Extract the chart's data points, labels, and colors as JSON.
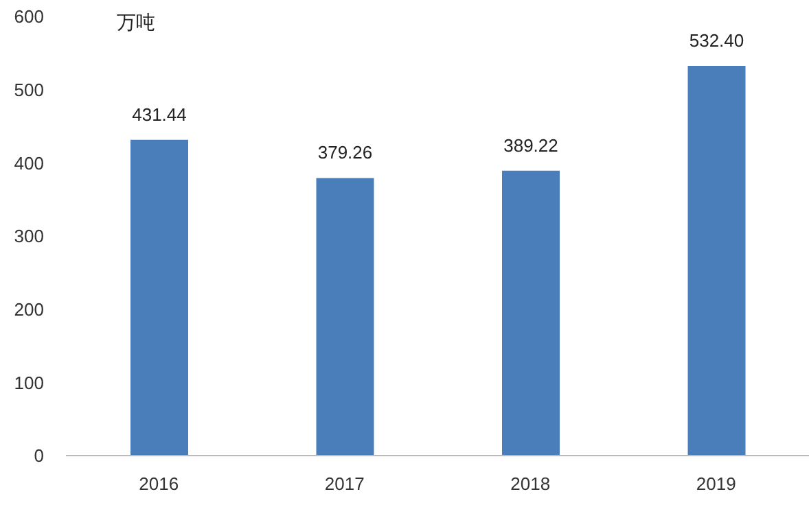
{
  "chart_data": {
    "type": "bar",
    "ylabel": "万吨",
    "categories": [
      "2016",
      "2017",
      "2018",
      "2019"
    ],
    "values": [
      431.44,
      379.26,
      389.22,
      532.4
    ],
    "value_labels": [
      "431.44",
      "379.26",
      "389.22",
      "532.40"
    ],
    "color": "#4a7ebb",
    "ylim": [
      0,
      600
    ],
    "yticks": [
      0,
      100,
      200,
      300,
      400,
      500,
      600
    ],
    "grid": false,
    "legend": false
  }
}
